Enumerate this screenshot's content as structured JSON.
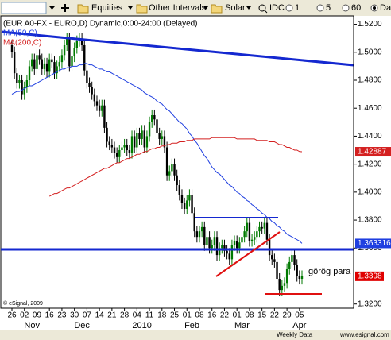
{
  "toolbar": {
    "items": [
      "Equities",
      "Other Intervals",
      "Solar",
      "IDC",
      "1",
      "5",
      "60",
      "Daily"
    ]
  },
  "footer": {
    "source": "Weekly Data",
    "url": "www.esignal.com"
  },
  "chart_data": {
    "type": "candlestick",
    "title": "(EUR A0-FX - EURO,D) Dynamic,0:00-24:00 (Delayed)",
    "copyright": "© eSignal, 2009",
    "annotation": "görög para",
    "up_color": "#007a00",
    "down_color": "#000000",
    "ylim": [
      1.317,
      1.526
    ],
    "yticks": [
      {
        "value": 1.52,
        "label": "1.5200"
      },
      {
        "value": 1.5,
        "label": "1.5000"
      },
      {
        "value": 1.48,
        "label": "1.4800"
      },
      {
        "value": 1.46,
        "label": "1.4600"
      },
      {
        "value": 1.44,
        "label": "1.4400"
      },
      {
        "value": 1.42,
        "label": "1.4200"
      },
      {
        "value": 1.4,
        "label": "1.4000"
      },
      {
        "value": 1.38,
        "label": "1.3800"
      },
      {
        "value": 1.36,
        "label": "1.3600"
      },
      {
        "value": 1.34,
        "label": "1.3400"
      },
      {
        "value": 1.32,
        "label": "1.3200"
      }
    ],
    "close_label": "1.3398",
    "close_color": "#e00000",
    "categories": [
      "26",
      null,
      null,
      null,
      null,
      "02",
      null,
      null,
      null,
      null,
      "09",
      null,
      null,
      null,
      null,
      "16",
      null,
      null,
      null,
      null,
      "23",
      null,
      null,
      null,
      null,
      "30",
      null,
      null,
      null,
      null,
      "07",
      null,
      null,
      null,
      null,
      "14",
      null,
      null,
      null,
      null,
      "21",
      null,
      null,
      null,
      null,
      "28",
      null,
      null,
      null,
      null,
      "04",
      null,
      null,
      null,
      null,
      "11",
      null,
      null,
      null,
      null,
      "18",
      null,
      null,
      null,
      null,
      "25",
      null,
      null,
      null,
      null,
      "01",
      null,
      null,
      null,
      null,
      "08",
      null,
      null,
      null,
      null,
      "16",
      null,
      null,
      null,
      null,
      "22",
      null,
      null,
      null,
      null,
      "01",
      null,
      null,
      null,
      null,
      "08",
      null,
      null,
      null,
      null,
      "15",
      null,
      null,
      null,
      null,
      "22",
      null,
      null,
      null,
      null,
      "29",
      null,
      null,
      null,
      null,
      "05",
      null
    ],
    "month_categories": [
      null,
      null,
      null,
      null,
      null,
      null,
      null,
      null,
      "Nov",
      null,
      null,
      null,
      null,
      null,
      null,
      null,
      null,
      null,
      null,
      null,
      null,
      null,
      null,
      null,
      null,
      null,
      null,
      null,
      "Dec",
      null,
      null,
      null,
      null,
      null,
      null,
      null,
      null,
      null,
      null,
      null,
      null,
      null,
      null,
      null,
      null,
      null,
      null,
      null,
      null,
      null,
      null,
      null,
      "2010",
      null,
      null,
      null,
      null,
      null,
      null,
      null,
      null,
      null,
      null,
      null,
      null,
      null,
      null,
      null,
      null,
      null,
      null,
      null,
      "Feb",
      null,
      null,
      null,
      null,
      null,
      null,
      null,
      null,
      null,
      null,
      null,
      null,
      null,
      null,
      null,
      null,
      null,
      null,
      null,
      "Mar",
      null,
      null,
      null,
      null,
      null,
      null,
      null,
      null,
      null,
      null,
      null,
      null,
      null,
      null,
      null,
      null,
      null,
      null,
      null,
      null,
      null,
      null,
      "Apr",
      null
    ],
    "candles": [
      [
        1.505,
        1.509,
        1.496,
        1.5
      ],
      [
        1.5,
        1.504,
        1.481,
        1.485
      ],
      [
        1.485,
        1.489,
        1.474,
        1.478
      ],
      [
        1.478,
        1.484,
        1.474,
        1.48
      ],
      [
        1.48,
        1.484,
        1.466,
        1.47
      ],
      [
        1.47,
        1.479,
        1.466,
        1.475
      ],
      [
        1.475,
        1.484,
        1.471,
        1.48
      ],
      [
        1.48,
        1.494,
        1.476,
        1.49
      ],
      [
        1.49,
        1.499,
        1.486,
        1.495
      ],
      [
        1.495,
        1.499,
        1.484,
        1.488
      ],
      [
        1.488,
        1.502,
        1.484,
        1.498
      ],
      [
        1.498,
        1.502,
        1.491,
        1.495
      ],
      [
        1.495,
        1.499,
        1.484,
        1.488
      ],
      [
        1.488,
        1.496,
        1.484,
        1.492
      ],
      [
        1.492,
        1.496,
        1.482,
        1.486
      ],
      [
        1.486,
        1.499,
        1.482,
        1.495
      ],
      [
        1.495,
        1.499,
        1.489,
        1.493
      ],
      [
        1.493,
        1.497,
        1.481,
        1.485
      ],
      [
        1.485,
        1.494,
        1.481,
        1.49
      ],
      [
        1.49,
        1.497,
        1.486,
        1.493
      ],
      [
        1.493,
        1.502,
        1.489,
        1.498
      ],
      [
        1.498,
        1.509,
        1.494,
        1.505
      ],
      [
        1.505,
        1.514,
        1.501,
        1.51
      ],
      [
        1.51,
        1.514,
        1.486,
        1.49
      ],
      [
        1.49,
        1.501,
        1.486,
        1.497
      ],
      [
        1.497,
        1.507,
        1.493,
        1.503
      ],
      [
        1.503,
        1.512,
        1.499,
        1.508
      ],
      [
        1.508,
        1.514,
        1.504,
        1.51
      ],
      [
        1.51,
        1.514,
        1.501,
        1.505
      ],
      [
        1.505,
        1.509,
        1.483,
        1.487
      ],
      [
        1.487,
        1.491,
        1.474,
        1.478
      ],
      [
        1.478,
        1.482,
        1.471,
        1.475
      ],
      [
        1.475,
        1.479,
        1.466,
        1.47
      ],
      [
        1.47,
        1.474,
        1.461,
        1.465
      ],
      [
        1.465,
        1.469,
        1.458,
        1.462
      ],
      [
        1.462,
        1.466,
        1.454,
        1.458
      ],
      [
        1.458,
        1.466,
        1.454,
        1.462
      ],
      [
        1.462,
        1.466,
        1.442,
        1.446
      ],
      [
        1.446,
        1.45,
        1.432,
        1.436
      ],
      [
        1.436,
        1.44,
        1.43,
        1.434
      ],
      [
        1.434,
        1.438,
        1.428,
        1.432
      ],
      [
        1.432,
        1.436,
        1.424,
        1.428
      ],
      [
        1.428,
        1.432,
        1.421,
        1.425
      ],
      [
        1.425,
        1.434,
        1.421,
        1.43
      ],
      [
        1.43,
        1.436,
        1.426,
        1.432
      ],
      [
        1.432,
        1.438,
        1.428,
        1.434
      ],
      [
        1.434,
        1.438,
        1.426,
        1.43
      ],
      [
        1.43,
        1.434,
        1.424,
        1.428
      ],
      [
        1.428,
        1.444,
        1.424,
        1.44
      ],
      [
        1.44,
        1.444,
        1.428,
        1.432
      ],
      [
        1.432,
        1.446,
        1.428,
        1.442
      ],
      [
        1.442,
        1.446,
        1.434,
        1.438
      ],
      [
        1.438,
        1.448,
        1.434,
        1.444
      ],
      [
        1.444,
        1.448,
        1.428,
        1.432
      ],
      [
        1.432,
        1.444,
        1.428,
        1.44
      ],
      [
        1.44,
        1.454,
        1.436,
        1.45
      ],
      [
        1.45,
        1.459,
        1.446,
        1.455
      ],
      [
        1.455,
        1.459,
        1.448,
        1.452
      ],
      [
        1.452,
        1.456,
        1.438,
        1.442
      ],
      [
        1.442,
        1.446,
        1.434,
        1.438
      ],
      [
        1.438,
        1.444,
        1.434,
        1.44
      ],
      [
        1.44,
        1.444,
        1.428,
        1.432
      ],
      [
        1.432,
        1.436,
        1.408,
        1.412
      ],
      [
        1.412,
        1.419,
        1.408,
        1.415
      ],
      [
        1.415,
        1.424,
        1.411,
        1.42
      ],
      [
        1.42,
        1.424,
        1.408,
        1.412
      ],
      [
        1.412,
        1.416,
        1.401,
        1.405
      ],
      [
        1.405,
        1.409,
        1.394,
        1.398
      ],
      [
        1.398,
        1.402,
        1.388,
        1.392
      ],
      [
        1.392,
        1.396,
        1.384,
        1.388
      ],
      [
        1.388,
        1.398,
        1.384,
        1.394
      ],
      [
        1.394,
        1.402,
        1.39,
        1.398
      ],
      [
        1.398,
        1.402,
        1.381,
        1.385
      ],
      [
        1.385,
        1.389,
        1.368,
        1.372
      ],
      [
        1.372,
        1.376,
        1.364,
        1.368
      ],
      [
        1.368,
        1.376,
        1.364,
        1.372
      ],
      [
        1.372,
        1.379,
        1.368,
        1.375
      ],
      [
        1.375,
        1.379,
        1.358,
        1.362
      ],
      [
        1.362,
        1.372,
        1.358,
        1.368
      ],
      [
        1.368,
        1.372,
        1.356,
        1.36
      ],
      [
        1.36,
        1.366,
        1.356,
        1.362
      ],
      [
        1.362,
        1.372,
        1.358,
        1.368
      ],
      [
        1.368,
        1.372,
        1.351,
        1.355
      ],
      [
        1.355,
        1.364,
        1.351,
        1.36
      ],
      [
        1.36,
        1.366,
        1.356,
        1.362
      ],
      [
        1.362,
        1.366,
        1.354,
        1.358
      ],
      [
        1.358,
        1.362,
        1.352,
        1.356
      ],
      [
        1.356,
        1.36,
        1.348,
        1.352
      ],
      [
        1.352,
        1.366,
        1.348,
        1.362
      ],
      [
        1.362,
        1.369,
        1.358,
        1.365
      ],
      [
        1.365,
        1.369,
        1.356,
        1.36
      ],
      [
        1.36,
        1.368,
        1.356,
        1.364
      ],
      [
        1.364,
        1.372,
        1.36,
        1.368
      ],
      [
        1.368,
        1.376,
        1.364,
        1.372
      ],
      [
        1.372,
        1.382,
        1.368,
        1.378
      ],
      [
        1.378,
        1.382,
        1.361,
        1.365
      ],
      [
        1.365,
        1.37,
        1.361,
        1.366
      ],
      [
        1.366,
        1.372,
        1.362,
        1.368
      ],
      [
        1.368,
        1.376,
        1.364,
        1.372
      ],
      [
        1.372,
        1.379,
        1.368,
        1.375
      ],
      [
        1.375,
        1.379,
        1.37,
        1.374
      ],
      [
        1.374,
        1.382,
        1.37,
        1.378
      ],
      [
        1.378,
        1.382,
        1.362,
        1.366
      ],
      [
        1.366,
        1.37,
        1.351,
        1.355
      ],
      [
        1.355,
        1.359,
        1.348,
        1.352
      ],
      [
        1.352,
        1.356,
        1.346,
        1.35
      ],
      [
        1.35,
        1.354,
        1.334,
        1.338
      ],
      [
        1.338,
        1.342,
        1.326,
        1.33
      ],
      [
        1.33,
        1.337,
        1.326,
        1.333
      ],
      [
        1.333,
        1.339,
        1.329,
        1.335
      ],
      [
        1.335,
        1.349,
        1.331,
        1.345
      ],
      [
        1.345,
        1.354,
        1.341,
        1.35
      ],
      [
        1.35,
        1.359,
        1.346,
        1.355
      ],
      [
        1.355,
        1.359,
        1.344,
        1.348
      ],
      [
        1.348,
        1.352,
        1.336,
        1.34
      ],
      [
        1.34,
        1.344,
        1.334,
        1.338
      ],
      [
        1.338,
        1.344,
        1.334,
        1.3398
      ]
    ],
    "series": [
      {
        "name": "MA(50,C)",
        "color": "#1f3fe0",
        "last_label": "1.363316",
        "values": [
          1.47,
          1.471,
          1.472,
          1.472,
          1.473,
          1.474,
          1.475,
          1.476,
          1.476,
          1.477,
          1.478,
          1.479,
          1.48,
          1.481,
          1.482,
          1.483,
          1.484,
          1.485,
          1.486,
          1.487,
          1.488,
          1.488,
          1.489,
          1.489,
          1.49,
          1.49,
          1.49,
          1.491,
          1.491,
          1.492,
          1.492,
          1.491,
          1.491,
          1.49,
          1.489,
          1.488,
          1.488,
          1.487,
          1.486,
          1.486,
          1.485,
          1.484,
          1.483,
          1.482,
          1.481,
          1.48,
          1.479,
          1.478,
          1.477,
          1.476,
          1.475,
          1.474,
          1.473,
          1.471,
          1.47,
          1.469,
          1.468,
          1.467,
          1.465,
          1.464,
          1.463,
          1.461,
          1.459,
          1.458,
          1.456,
          1.454,
          1.452,
          1.45,
          1.449,
          1.447,
          1.445,
          1.442,
          1.44,
          1.437,
          1.435,
          1.432,
          1.429,
          1.426,
          1.424,
          1.421,
          1.418,
          1.416,
          1.414,
          1.413,
          1.411,
          1.409,
          1.407,
          1.405,
          1.404,
          1.402,
          1.4,
          1.399,
          1.397,
          1.396,
          1.394,
          1.393,
          1.391,
          1.39,
          1.388,
          1.387,
          1.385,
          1.384,
          1.382,
          1.381,
          1.379,
          1.378,
          1.376,
          1.375,
          1.373,
          1.372,
          1.37,
          1.369,
          1.368,
          1.367,
          1.366,
          1.365,
          1.363316
        ]
      },
      {
        "name": "MA(200,C)",
        "color": "#d42020",
        "last_label": "1.42887",
        "values": [
          null,
          null,
          null,
          null,
          null,
          null,
          null,
          null,
          null,
          null,
          null,
          null,
          null,
          null,
          null,
          1.397,
          1.398,
          1.399,
          1.399,
          1.4,
          1.401,
          1.402,
          1.403,
          1.403,
          1.404,
          1.405,
          1.406,
          1.407,
          1.408,
          1.409,
          1.41,
          1.411,
          1.412,
          1.413,
          1.414,
          1.415,
          1.416,
          1.417,
          1.417,
          1.418,
          1.419,
          1.42,
          1.421,
          1.421,
          1.422,
          1.423,
          1.424,
          1.424,
          1.425,
          1.426,
          1.427,
          1.427,
          1.428,
          1.429,
          1.429,
          1.43,
          1.431,
          1.431,
          1.432,
          1.432,
          1.433,
          1.433,
          1.434,
          1.434,
          1.435,
          1.435,
          1.435,
          1.436,
          1.436,
          1.436,
          1.437,
          1.437,
          1.437,
          1.438,
          1.438,
          1.438,
          1.438,
          1.438,
          1.438,
          1.438,
          1.439,
          1.439,
          1.439,
          1.439,
          1.439,
          1.439,
          1.439,
          1.439,
          1.439,
          1.439,
          1.438,
          1.438,
          1.438,
          1.438,
          1.438,
          1.438,
          1.438,
          1.438,
          1.437,
          1.437,
          1.437,
          1.437,
          1.437,
          1.436,
          1.436,
          1.436,
          1.435,
          1.434,
          1.434,
          1.433,
          1.432,
          1.432,
          1.431,
          1.43,
          1.43,
          1.429,
          1.42887
        ]
      }
    ]
  }
}
